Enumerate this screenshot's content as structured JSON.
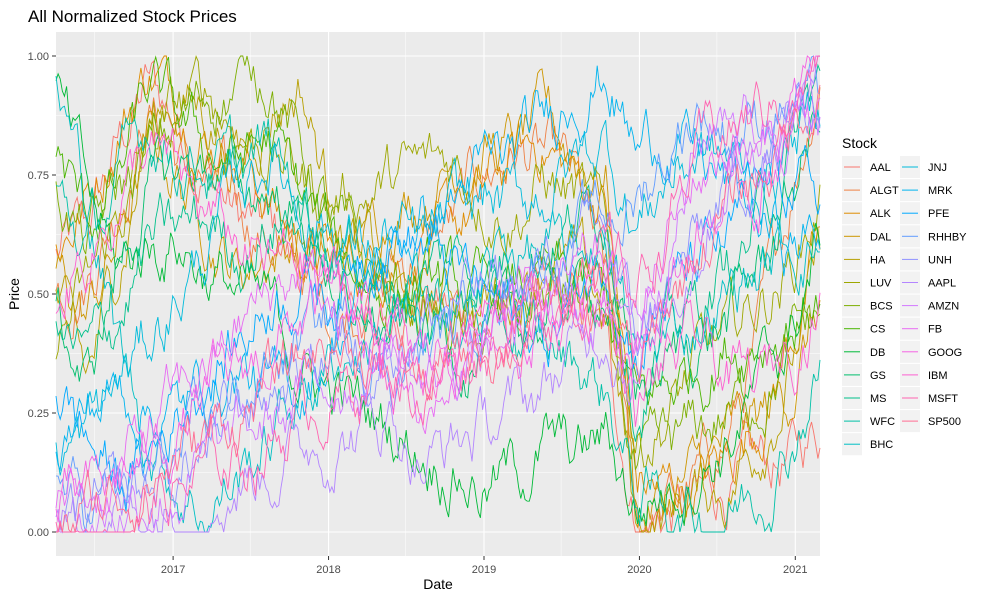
{
  "chart_data": {
    "type": "line",
    "title": "All Normalized Stock Prices",
    "xlabel": "Date",
    "ylabel": "Price",
    "xlim": [
      "2016-04-01",
      "2021-02-28"
    ],
    "ylim": [
      0,
      1
    ],
    "x_ticks": [
      "2017",
      "2018",
      "2019",
      "2020",
      "2021"
    ],
    "y_ticks": [
      "0.00",
      "0.25",
      "0.50",
      "0.75",
      "1.00"
    ],
    "grid": true,
    "legend": {
      "title": "Stock",
      "placement": "right",
      "columns": 2
    },
    "series": [
      {
        "name": "AAL",
        "color": "#F8766D",
        "values": [
          0.58,
          0.62,
          0.8,
          0.94,
          0.86,
          0.76,
          0.66,
          0.62,
          0.55,
          0.52,
          0.48,
          0.52,
          0.5,
          0.46,
          0.44,
          0.42,
          0.48,
          0.46,
          0.38,
          0.02,
          0.04,
          0.05,
          0.1,
          0.12,
          0.15,
          0.22
        ]
      },
      {
        "name": "ALGT",
        "color": "#EE8044",
        "values": [
          0.5,
          0.55,
          0.7,
          0.9,
          0.8,
          0.72,
          0.68,
          0.62,
          0.55,
          0.45,
          0.5,
          0.55,
          0.6,
          0.65,
          0.75,
          0.8,
          0.78,
          0.72,
          0.5,
          0.02,
          0.05,
          0.1,
          0.2,
          0.4,
          0.7,
          0.98
        ]
      },
      {
        "name": "ALK",
        "color": "#DE8C00",
        "values": [
          0.6,
          0.7,
          0.85,
          0.98,
          0.92,
          0.84,
          0.8,
          0.7,
          0.6,
          0.58,
          0.55,
          0.6,
          0.58,
          0.62,
          0.7,
          0.78,
          0.82,
          0.74,
          0.7,
          0.1,
          0.08,
          0.1,
          0.15,
          0.25,
          0.4,
          0.6
        ]
      },
      {
        "name": "DAL",
        "color": "#CD9600",
        "values": [
          0.55,
          0.45,
          0.6,
          0.8,
          0.75,
          0.65,
          0.55,
          0.6,
          0.62,
          0.55,
          0.6,
          0.7,
          0.72,
          0.78,
          0.82,
          0.8,
          0.85,
          0.8,
          0.75,
          0.05,
          0.06,
          0.12,
          0.18,
          0.22,
          0.3,
          0.48
        ]
      },
      {
        "name": "HA",
        "color": "#B79F00",
        "values": [
          0.5,
          0.3,
          0.55,
          0.85,
          0.92,
          0.88,
          0.8,
          0.9,
          0.95,
          0.7,
          0.6,
          0.5,
          0.45,
          0.5,
          0.48,
          0.52,
          0.6,
          0.55,
          0.45,
          0.02,
          0.05,
          0.08,
          0.1,
          0.2,
          0.35,
          0.55
        ]
      },
      {
        "name": "LUV",
        "color": "#9DA700",
        "values": [
          0.4,
          0.5,
          0.65,
          0.8,
          0.88,
          0.92,
          0.85,
          0.8,
          0.75,
          0.7,
          0.72,
          0.74,
          0.75,
          0.78,
          0.72,
          0.68,
          0.74,
          0.7,
          0.62,
          0.2,
          0.25,
          0.35,
          0.4,
          0.48,
          0.55,
          0.7
        ]
      },
      {
        "name": "BCS",
        "color": "#7CAE00",
        "values": [
          0.75,
          0.6,
          0.7,
          0.78,
          0.85,
          0.92,
          0.95,
          0.98,
          0.8,
          0.65,
          0.55,
          0.5,
          0.48,
          0.42,
          0.4,
          0.45,
          0.5,
          0.48,
          0.45,
          0.1,
          0.15,
          0.2,
          0.25,
          0.3,
          0.38,
          0.45
        ]
      },
      {
        "name": "CS",
        "color": "#49B500",
        "values": [
          0.8,
          0.65,
          0.72,
          0.92,
          0.85,
          0.8,
          0.78,
          0.82,
          0.7,
          0.6,
          0.55,
          0.5,
          0.52,
          0.5,
          0.48,
          0.5,
          0.52,
          0.5,
          0.48,
          0.25,
          0.3,
          0.35,
          0.4,
          0.42,
          0.45,
          0.5
        ]
      },
      {
        "name": "DB",
        "color": "#00BA38",
        "values": [
          0.92,
          0.7,
          0.55,
          0.6,
          0.62,
          0.55,
          0.5,
          0.45,
          0.35,
          0.3,
          0.25,
          0.22,
          0.18,
          0.15,
          0.1,
          0.12,
          0.18,
          0.15,
          0.2,
          0.05,
          0.1,
          0.15,
          0.2,
          0.3,
          0.4,
          0.62
        ]
      },
      {
        "name": "GS",
        "color": "#00BE6C",
        "values": [
          0.45,
          0.3,
          0.55,
          0.72,
          0.75,
          0.78,
          0.7,
          0.72,
          0.65,
          0.55,
          0.45,
          0.4,
          0.42,
          0.4,
          0.38,
          0.42,
          0.45,
          0.5,
          0.52,
          0.3,
          0.35,
          0.4,
          0.45,
          0.55,
          0.7,
          0.88
        ]
      },
      {
        "name": "MS",
        "color": "#00C08B",
        "values": [
          0.4,
          0.35,
          0.45,
          0.6,
          0.62,
          0.65,
          0.6,
          0.65,
          0.68,
          0.55,
          0.5,
          0.52,
          0.55,
          0.58,
          0.55,
          0.6,
          0.62,
          0.65,
          0.7,
          0.3,
          0.4,
          0.48,
          0.55,
          0.65,
          0.8,
          0.95
        ]
      },
      {
        "name": "WFC",
        "color": "#00C1A7",
        "values": [
          0.7,
          0.6,
          0.72,
          0.85,
          0.8,
          0.78,
          0.75,
          0.8,
          0.7,
          0.62,
          0.58,
          0.55,
          0.5,
          0.48,
          0.45,
          0.4,
          0.38,
          0.36,
          0.3,
          0.08,
          0.06,
          0.04,
          0.05,
          0.1,
          0.2,
          0.35
        ]
      },
      {
        "name": "BHC",
        "color": "#00BFC4",
        "values": [
          0.95,
          0.7,
          0.4,
          0.2,
          0.1,
          0.05,
          0.12,
          0.2,
          0.3,
          0.35,
          0.4,
          0.45,
          0.38,
          0.42,
          0.55,
          0.6,
          0.58,
          0.55,
          0.65,
          0.35,
          0.4,
          0.45,
          0.5,
          0.55,
          0.6,
          0.62
        ]
      },
      {
        "name": "JNJ",
        "color": "#00BBDB",
        "values": [
          0.15,
          0.2,
          0.3,
          0.4,
          0.5,
          0.6,
          0.72,
          0.8,
          0.7,
          0.65,
          0.6,
          0.62,
          0.58,
          0.65,
          0.7,
          0.68,
          0.72,
          0.78,
          0.82,
          0.65,
          0.75,
          0.8,
          0.78,
          0.72,
          0.82,
          0.88
        ]
      },
      {
        "name": "MRK",
        "color": "#00B4EF",
        "values": [
          0.2,
          0.25,
          0.3,
          0.28,
          0.25,
          0.3,
          0.35,
          0.28,
          0.3,
          0.4,
          0.5,
          0.6,
          0.65,
          0.7,
          0.75,
          0.78,
          0.85,
          0.95,
          0.98,
          0.8,
          0.85,
          0.78,
          0.72,
          0.65,
          0.6,
          0.62
        ]
      },
      {
        "name": "PFE",
        "color": "#00A9FF",
        "values": [
          0.3,
          0.2,
          0.1,
          0.15,
          0.25,
          0.35,
          0.4,
          0.5,
          0.55,
          0.5,
          0.6,
          0.65,
          0.6,
          0.55,
          0.5,
          0.45,
          0.4,
          0.5,
          0.6,
          0.4,
          0.5,
          0.55,
          0.6,
          0.7,
          0.75,
          0.7
        ]
      },
      {
        "name": "RHHBY",
        "color": "#619CFF",
        "values": [
          0.1,
          0.05,
          0.08,
          0.1,
          0.15,
          0.2,
          0.28,
          0.35,
          0.4,
          0.45,
          0.4,
          0.35,
          0.38,
          0.42,
          0.5,
          0.55,
          0.6,
          0.62,
          0.65,
          0.7,
          0.8,
          0.9,
          0.85,
          0.88,
          0.92,
          0.9
        ]
      },
      {
        "name": "UNH",
        "color": "#8F91FF",
        "values": [
          0.0,
          0.02,
          0.05,
          0.08,
          0.12,
          0.18,
          0.25,
          0.3,
          0.35,
          0.4,
          0.38,
          0.42,
          0.45,
          0.48,
          0.5,
          0.52,
          0.55,
          0.58,
          0.62,
          0.4,
          0.5,
          0.6,
          0.7,
          0.78,
          0.85,
          0.92
        ]
      },
      {
        "name": "AAPL",
        "color": "#B385FF",
        "values": [
          0.0,
          0.01,
          0.03,
          0.06,
          0.08,
          0.1,
          0.12,
          0.15,
          0.18,
          0.2,
          0.22,
          0.25,
          0.15,
          0.18,
          0.22,
          0.25,
          0.3,
          0.38,
          0.45,
          0.35,
          0.48,
          0.62,
          0.78,
          0.82,
          0.88,
          0.95
        ]
      },
      {
        "name": "AMZN",
        "color": "#D277FF",
        "values": [
          0.02,
          0.04,
          0.06,
          0.08,
          0.1,
          0.14,
          0.18,
          0.22,
          0.28,
          0.32,
          0.35,
          0.4,
          0.3,
          0.35,
          0.4,
          0.42,
          0.45,
          0.48,
          0.5,
          0.48,
          0.62,
          0.8,
          0.92,
          0.85,
          0.9,
          0.88
        ]
      },
      {
        "name": "FB",
        "color": "#E76BF3",
        "values": [
          0.05,
          0.08,
          0.12,
          0.2,
          0.28,
          0.35,
          0.42,
          0.5,
          0.55,
          0.45,
          0.4,
          0.35,
          0.25,
          0.3,
          0.38,
          0.42,
          0.48,
          0.5,
          0.55,
          0.42,
          0.6,
          0.75,
          0.82,
          0.78,
          0.85,
          0.9
        ]
      },
      {
        "name": "GOOG",
        "color": "#F564E3",
        "values": [
          0.05,
          0.06,
          0.1,
          0.15,
          0.22,
          0.28,
          0.32,
          0.38,
          0.45,
          0.48,
          0.42,
          0.4,
          0.35,
          0.4,
          0.45,
          0.42,
          0.48,
          0.52,
          0.55,
          0.38,
          0.5,
          0.62,
          0.7,
          0.72,
          0.85,
          0.98
        ]
      },
      {
        "name": "IBM",
        "color": "#FD61D1",
        "values": [
          0.5,
          0.6,
          0.7,
          0.8,
          0.72,
          0.65,
          0.6,
          0.55,
          0.58,
          0.52,
          0.45,
          0.35,
          0.3,
          0.4,
          0.45,
          0.38,
          0.42,
          0.45,
          0.5,
          0.25,
          0.35,
          0.38,
          0.32,
          0.3,
          0.4,
          0.5
        ]
      },
      {
        "name": "MSFT",
        "color": "#FF64B0",
        "values": [
          0.0,
          0.02,
          0.04,
          0.06,
          0.08,
          0.12,
          0.15,
          0.2,
          0.25,
          0.3,
          0.32,
          0.35,
          0.3,
          0.35,
          0.4,
          0.45,
          0.48,
          0.52,
          0.58,
          0.5,
          0.65,
          0.78,
          0.85,
          0.88,
          0.92,
          0.98
        ]
      },
      {
        "name": "SP500",
        "color": "#FF6C91",
        "values": [
          0.02,
          0.04,
          0.08,
          0.12,
          0.16,
          0.2,
          0.25,
          0.3,
          0.35,
          0.4,
          0.38,
          0.42,
          0.3,
          0.35,
          0.4,
          0.42,
          0.45,
          0.48,
          0.52,
          0.3,
          0.45,
          0.6,
          0.68,
          0.75,
          0.85,
          0.95
        ]
      }
    ]
  }
}
